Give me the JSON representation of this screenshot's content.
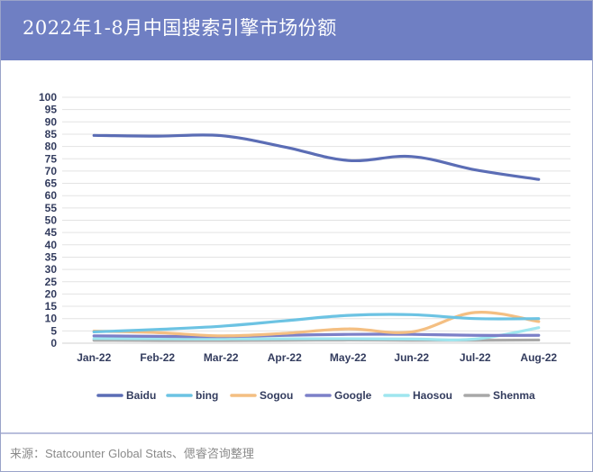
{
  "header": {
    "title": "2022年1-8月中国搜索引擎市场份额",
    "background": "#6f7fc3"
  },
  "footer": {
    "source": "来源：Statcounter Global Stats、偲睿咨询整理"
  },
  "chart_data": {
    "type": "line",
    "title": "2022年1-8月中国搜索引擎市场份额",
    "xlabel": "",
    "ylabel": "",
    "categories": [
      "Jan-22",
      "Feb-22",
      "Mar-22",
      "Apr-22",
      "May-22",
      "Jun-22",
      "Jul-22",
      "Aug-22"
    ],
    "ylim": [
      0,
      100
    ],
    "yticks": [
      0,
      5,
      10,
      15,
      20,
      25,
      30,
      35,
      40,
      45,
      50,
      55,
      60,
      65,
      70,
      75,
      80,
      85,
      90,
      95,
      100
    ],
    "grid": true,
    "legend_position": "bottom",
    "series": [
      {
        "name": "Baidu",
        "color": "#5b6db5",
        "values": [
          84.5,
          84.2,
          84.4,
          79.8,
          74.3,
          75.9,
          70.5,
          66.6
        ]
      },
      {
        "name": "bing",
        "color": "#6cc3e3",
        "values": [
          4.6,
          5.6,
          6.9,
          9.1,
          11.3,
          11.6,
          10.0,
          10.0
        ]
      },
      {
        "name": "Sogou",
        "color": "#f4bf82",
        "values": [
          4.9,
          4.3,
          3.0,
          4.0,
          5.8,
          4.6,
          12.5,
          8.8
        ]
      },
      {
        "name": "Google",
        "color": "#7c80c8",
        "values": [
          3.0,
          2.8,
          2.7,
          3.2,
          3.6,
          3.6,
          3.2,
          3.2
        ]
      },
      {
        "name": "Haosou",
        "color": "#9fe6ef",
        "values": [
          1.9,
          1.8,
          1.7,
          1.8,
          1.8,
          1.7,
          1.7,
          6.3
        ]
      },
      {
        "name": "Shenma",
        "color": "#a8a8a8",
        "values": [
          1.2,
          1.1,
          1.1,
          1.2,
          1.3,
          1.2,
          1.2,
          1.3
        ]
      }
    ]
  }
}
